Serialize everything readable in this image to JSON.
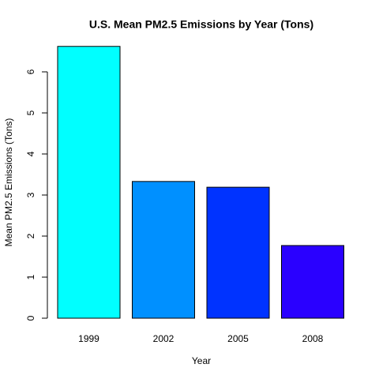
{
  "chart_data": {
    "type": "bar",
    "title": "U.S. Mean PM2.5 Emissions by Year (Tons)",
    "x_label": "Year",
    "y_label": "Mean PM2.5 Emissions (Tons)",
    "categories": [
      "1999",
      "2002",
      "2005",
      "2008"
    ],
    "values": [
      6.62,
      3.33,
      3.19,
      1.77
    ],
    "colors": [
      "#00ffff",
      "#0090ff",
      "#0033ff",
      "#2a00ff"
    ],
    "ylim": [
      0,
      7
    ],
    "yticks": [
      0,
      1,
      2,
      3,
      4,
      5,
      6
    ],
    "grid": false
  }
}
